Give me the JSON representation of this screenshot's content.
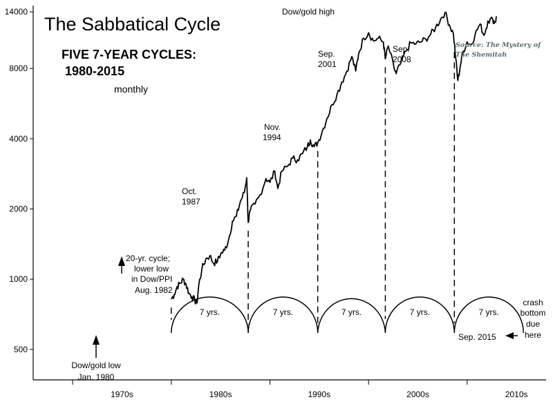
{
  "chart_data": {
    "type": "line",
    "title": "The Sabbatical Cycle",
    "subtitle_line1": "FIVE 7-YEAR CYCLES:",
    "subtitle_line2": "1980-2015",
    "frequency_note": "monthly",
    "source_line1": "Source: The Mystery of",
    "source_line2": "The Shemitah",
    "y_scale": "log",
    "ylim": [
      370,
      14500
    ],
    "xlim": [
      1966,
      2018
    ],
    "y_ticks": [
      {
        "value": 500,
        "label": "500"
      },
      {
        "value": 1000,
        "label": "1000"
      },
      {
        "value": 2000,
        "label": "2000"
      },
      {
        "value": 4000,
        "label": "4000"
      },
      {
        "value": 8000,
        "label": "8000"
      },
      {
        "value": 14000,
        "label": "14000"
      }
    ],
    "x_ticks": [
      {
        "value": 1970,
        "label": "1970s"
      },
      {
        "value": 1980,
        "label": "1980s"
      },
      {
        "value": 1990,
        "label": "1990s"
      },
      {
        "value": 2000,
        "label": "2000s"
      },
      {
        "value": 2010,
        "label": "2010s"
      }
    ],
    "series": [
      {
        "name": "Dow (monthly)",
        "points": [
          [
            1980.0,
            820
          ],
          [
            1980.3,
            860
          ],
          [
            1980.6,
            930
          ],
          [
            1980.9,
            960
          ],
          [
            1981.2,
            1000
          ],
          [
            1981.5,
            950
          ],
          [
            1981.8,
            870
          ],
          [
            1982.1,
            840
          ],
          [
            1982.4,
            810
          ],
          [
            1982.6,
            790
          ],
          [
            1982.8,
            950
          ],
          [
            1983.1,
            1100
          ],
          [
            1983.5,
            1220
          ],
          [
            1983.9,
            1260
          ],
          [
            1984.3,
            1170
          ],
          [
            1984.7,
            1200
          ],
          [
            1985.0,
            1280
          ],
          [
            1985.4,
            1330
          ],
          [
            1985.8,
            1470
          ],
          [
            1986.2,
            1770
          ],
          [
            1986.6,
            1860
          ],
          [
            1987.0,
            2150
          ],
          [
            1987.4,
            2350
          ],
          [
            1987.65,
            2720
          ],
          [
            1987.8,
            1750
          ],
          [
            1988.0,
            1960
          ],
          [
            1988.5,
            2100
          ],
          [
            1989.0,
            2300
          ],
          [
            1989.6,
            2700
          ],
          [
            1990.0,
            2600
          ],
          [
            1990.5,
            2900
          ],
          [
            1990.8,
            2450
          ],
          [
            1991.2,
            2900
          ],
          [
            1991.8,
            3050
          ],
          [
            1992.3,
            3300
          ],
          [
            1992.8,
            3250
          ],
          [
            1993.3,
            3450
          ],
          [
            1993.8,
            3700
          ],
          [
            1994.1,
            3950
          ],
          [
            1994.5,
            3700
          ],
          [
            1994.85,
            3850
          ],
          [
            1995.3,
            4300
          ],
          [
            1995.8,
            4900
          ],
          [
            1996.3,
            5600
          ],
          [
            1996.8,
            6200
          ],
          [
            1997.3,
            7000
          ],
          [
            1997.8,
            7800
          ],
          [
            1998.3,
            9000
          ],
          [
            1998.7,
            7800
          ],
          [
            1999.0,
            9300
          ],
          [
            1999.5,
            10800
          ],
          [
            2000.0,
            11400
          ],
          [
            2000.5,
            10500
          ],
          [
            2001.0,
            10800
          ],
          [
            2001.5,
            10400
          ],
          [
            2001.7,
            8800
          ],
          [
            2002.0,
            10000
          ],
          [
            2002.6,
            8000
          ],
          [
            2002.8,
            7600
          ],
          [
            2003.3,
            8500
          ],
          [
            2003.8,
            9500
          ],
          [
            2004.3,
            10300
          ],
          [
            2004.8,
            10200
          ],
          [
            2005.3,
            10400
          ],
          [
            2005.8,
            10700
          ],
          [
            2006.3,
            11200
          ],
          [
            2006.8,
            12000
          ],
          [
            2007.3,
            13000
          ],
          [
            2007.75,
            13900
          ],
          [
            2008.2,
            12300
          ],
          [
            2008.6,
            11300
          ],
          [
            2008.85,
            8800
          ],
          [
            2009.05,
            7100
          ],
          [
            2009.3,
            8200
          ],
          [
            2009.6,
            9500
          ],
          [
            2010.0,
            10400
          ],
          [
            2010.4,
            10100
          ],
          [
            2010.8,
            11200
          ],
          [
            2011.3,
            12400
          ],
          [
            2011.7,
            11100
          ],
          [
            2012.1,
            12800
          ],
          [
            2012.6,
            13000
          ],
          [
            2012.8,
            12600
          ],
          [
            2013.0,
            13300
          ]
        ]
      }
    ],
    "cycle_markers": [
      {
        "year": 1980.0,
        "label_line1": "Dow/gold low",
        "label_line2": "Jan. 1980"
      },
      {
        "year": 1982.6,
        "label_line1": "20-yr. cycle;",
        "label_line2": "lower low",
        "label_line3": "in Dow/PPI",
        "label_line4": "Aug. 1982"
      },
      {
        "year": 1987.8,
        "label_line1": "Oct.",
        "label_line2": "1987"
      },
      {
        "year": 1994.85,
        "label_line1": "Nov.",
        "label_line2": "1994"
      },
      {
        "year": 2001.7,
        "label_line1": "Sep.",
        "label_line2": "2001"
      },
      {
        "year": 2008.7,
        "label_line1": "Sep.",
        "label_line2": "2008"
      }
    ],
    "peak_label": "Dow/gold high",
    "cycles": [
      {
        "label": "7 yrs."
      },
      {
        "label": "7 yrs."
      },
      {
        "label": "7 yrs."
      },
      {
        "label": "7 yrs."
      },
      {
        "label": "7 yrs."
      }
    ],
    "end_label": "Sep. 2015",
    "forecast_line1": "crash",
    "forecast_line2": "bottom",
    "forecast_line3": "due",
    "forecast_line4": "here"
  }
}
